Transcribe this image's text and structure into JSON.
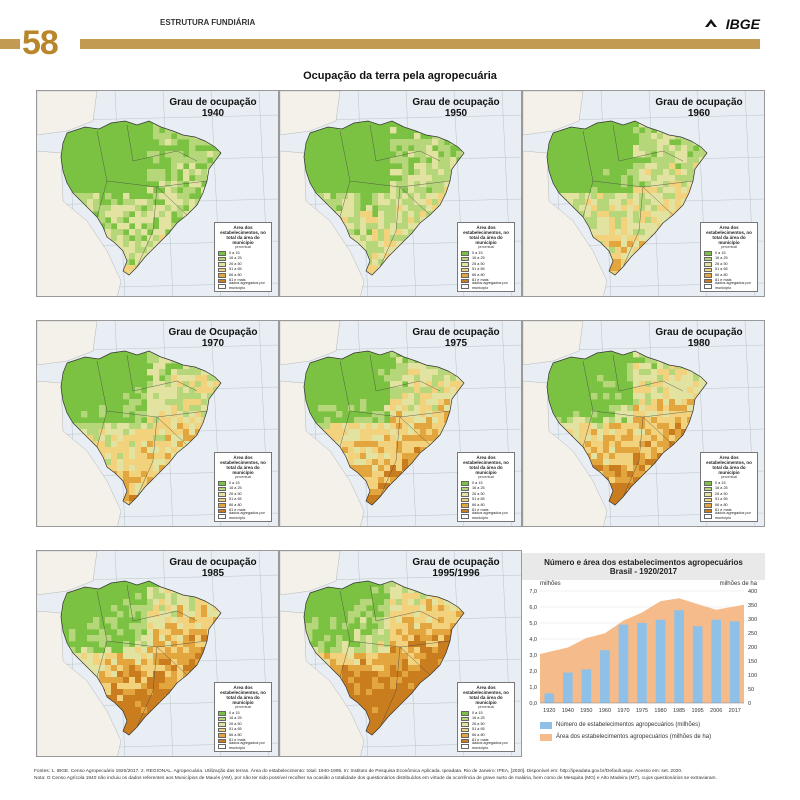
{
  "header": {
    "page_number": "58",
    "section": "ESTRUTURA FUNDIÁRIA",
    "brand": "IBGE"
  },
  "title": "Ocupação da terra pela agropecuária",
  "legend": {
    "title": "Área dos estabelecimentos, no total da área do município",
    "unit": "percentual",
    "classes": [
      "0 a 15",
      "16 a 25",
      "26 a 50",
      "51 a 65",
      "66 a 80",
      "81 e mais",
      "dados agregados por município"
    ],
    "colors": [
      "#7cc242",
      "#b5d77a",
      "#e2e3a0",
      "#f2d27c",
      "#e3a53d",
      "#c97d1f",
      "#ffffff"
    ]
  },
  "maps": [
    {
      "heading": "Grau de ocupação",
      "year": "1940"
    },
    {
      "heading": "Grau de ocupação",
      "year": "1950"
    },
    {
      "heading": "Grau de ocupação",
      "year": "1960"
    },
    {
      "heading": "Grau de Ocupação",
      "year": "1970"
    },
    {
      "heading": "Grau de ocupação",
      "year": "1975"
    },
    {
      "heading": "Grau de ocupação",
      "year": "1980"
    },
    {
      "heading": "Grau de ocupação",
      "year": "1985"
    },
    {
      "heading": "Grau de ocupação",
      "year": "1995/1996"
    }
  ],
  "chart_data": {
    "type": "bar",
    "title": "Número e área dos estabelecimentos agropecuários",
    "subtitle": "Brasil - 1920/2017",
    "ylabel_left": "milhões",
    "ylabel_right": "milhões de ha",
    "categories": [
      "1920",
      "1940",
      "1950",
      "1960",
      "1970",
      "1975",
      "1980",
      "1985",
      "1995",
      "2006",
      "2017"
    ],
    "series": [
      {
        "name": "Número de estabelecimentos agropecuários (milhões)",
        "kind": "bar",
        "axis": "left",
        "color": "#8ec0e8",
        "values": [
          0.6,
          1.9,
          2.1,
          3.3,
          4.9,
          5.0,
          5.2,
          5.8,
          4.8,
          5.2,
          5.1
        ]
      },
      {
        "name": "Área dos estabelecimentos agropecuários (milhões de ha)",
        "kind": "area",
        "axis": "right",
        "color": "#f6bb8a",
        "values": [
          175,
          198,
          232,
          249,
          294,
          323,
          364,
          374,
          353,
          333,
          351
        ]
      }
    ],
    "ylim_left": [
      0,
      7
    ],
    "yticks_left": [
      "0,0",
      "1,0",
      "2,0",
      "3,0",
      "4,0",
      "5,0",
      "6,0",
      "7,0"
    ],
    "ylim_right": [
      0,
      400
    ],
    "yticks_right": [
      "0",
      "50",
      "100",
      "150",
      "200",
      "250",
      "300",
      "350",
      "400"
    ]
  },
  "footnotes": {
    "sources": "Fontes: 1. IBGE. Censo Agropecuário 1920/2017. 2. REGIONAL. Agropecuária. Utilização das terras. Área do estabelecimento: total: 1940-1995. In: Instituto de Pesquisa Econômica Aplicada. Ipeadata. Rio de Janeiro: IPEA, [2020]. Disponível em: http://ipeadata.gov.br/Default.aspx. Acesso em: set. 2020.",
    "note": "Nota: O Censo Agrícola 1940 não incluiu os dados referentes aos Municípios de Maués (AM), por não ter sido possível recolher na ocasião a totalidade dos questionários distribuídos em virtude da ocorrência de grave surto de malária, bem como de Mesquita (MG) e Alto Madeira (MT), cujos questionários se extraviaram."
  }
}
